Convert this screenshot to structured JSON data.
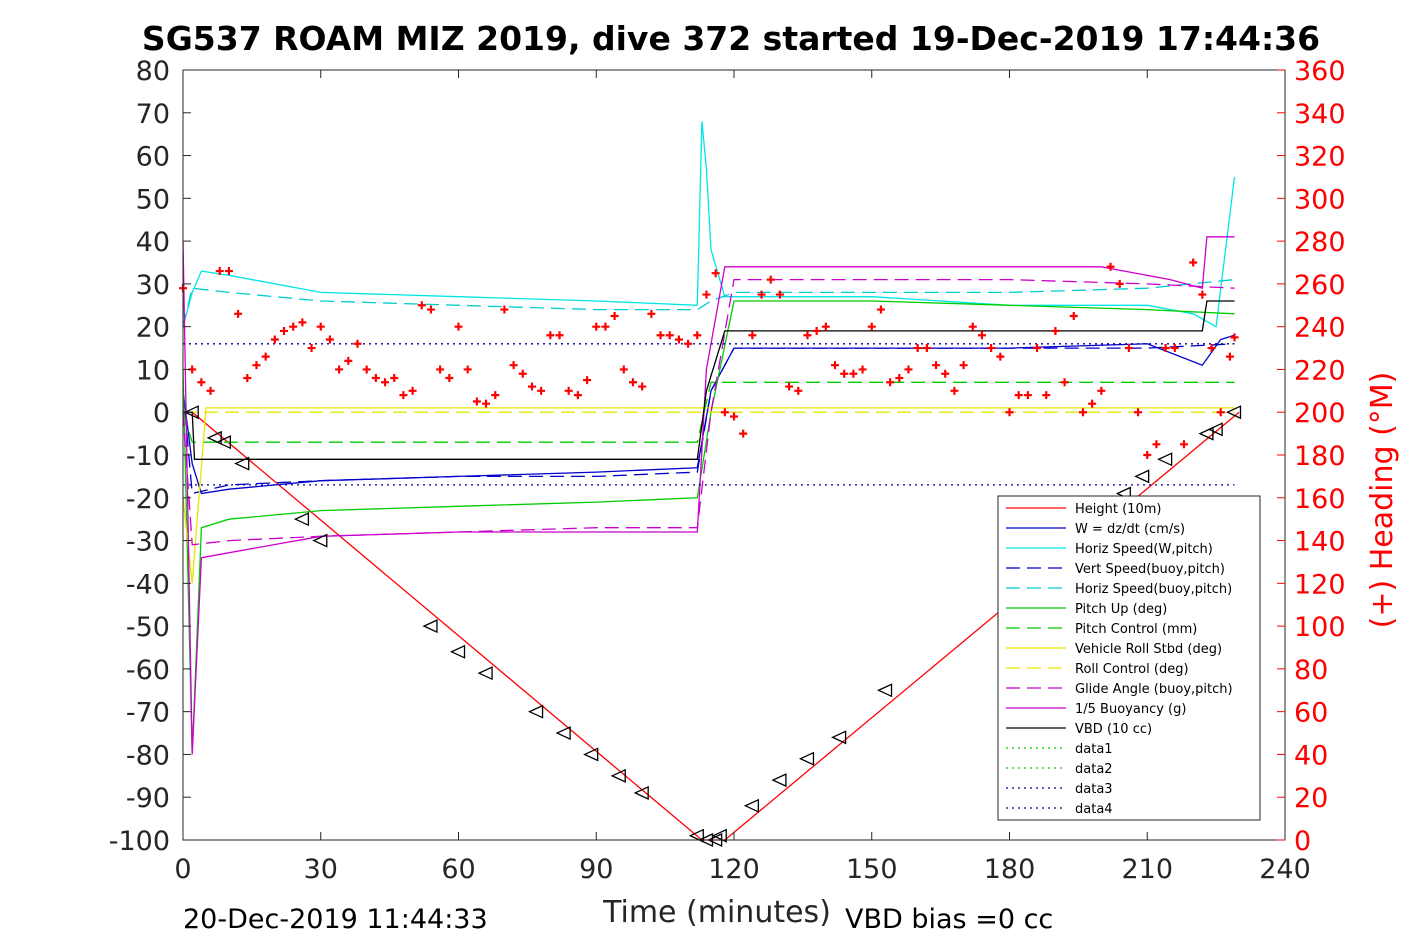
{
  "chart_data": {
    "type": "line",
    "title": "SG537 ROAM MIZ 2019, dive 372 started 19-Dec-2019 17:44:36",
    "xlabel": "Time (minutes)",
    "ylabel_right": "(+) Heading (°M)",
    "footer_left": "20-Dec-2019 11:44:33",
    "footer_right": "VBD bias =0 cc",
    "xlim": [
      0,
      240
    ],
    "ylim": [
      -100,
      80
    ],
    "ylim_right": [
      0,
      360
    ],
    "x_ticks": [
      "0",
      "30",
      "60",
      "90",
      "120",
      "150",
      "180",
      "210",
      "240"
    ],
    "y_ticks": [
      "80",
      "70",
      "60",
      "50",
      "40",
      "30",
      "20",
      "10",
      "0",
      "-10",
      "-20",
      "-30",
      "-40",
      "-50",
      "-60",
      "-70",
      "-80",
      "-90",
      "-100"
    ],
    "y_ticks_right": [
      "360",
      "340",
      "320",
      "300",
      "280",
      "260",
      "240",
      "220",
      "200",
      "180",
      "160",
      "140",
      "120",
      "100",
      "80",
      "60",
      "40",
      "20",
      "0"
    ],
    "grid": false,
    "legend_position": "bottom-right",
    "legend": [
      {
        "name": "Height (10m)",
        "color": "#ff0000",
        "dash": "solid"
      },
      {
        "name": "W = dz/dt (cm/s)",
        "color": "#0000cc",
        "dash": "solid"
      },
      {
        "name": "Horiz Speed(W,pitch)",
        "color": "#00e6e6",
        "dash": "solid"
      },
      {
        "name": "Vert Speed(buoy,pitch)",
        "color": "#0000cc",
        "dash": "dashed"
      },
      {
        "name": "Horiz Speed(buoy,pitch)",
        "color": "#00cccc",
        "dash": "dashed"
      },
      {
        "name": "Pitch Up (deg)",
        "color": "#00cc00",
        "dash": "solid"
      },
      {
        "name": "Pitch Control (mm)",
        "color": "#00cc00",
        "dash": "dashed"
      },
      {
        "name": "Vehicle Roll Stbd (deg)",
        "color": "#e6e600",
        "dash": "solid"
      },
      {
        "name": "Roll Control (deg)",
        "color": "#e6e600",
        "dash": "dashed"
      },
      {
        "name": "Glide Angle (buoy,pitch)",
        "color": "#cc00cc",
        "dash": "dashed"
      },
      {
        "name": "1/5 Buoyancy (g)",
        "color": "#cc00cc",
        "dash": "solid"
      },
      {
        "name": "VBD (10 cc)",
        "color": "#000000",
        "dash": "solid"
      },
      {
        "name": "data1",
        "color": "#00cc00",
        "dash": "dotted"
      },
      {
        "name": "data2",
        "color": "#00cc00",
        "dash": "dotted"
      },
      {
        "name": "data3",
        "color": "#000099",
        "dash": "dotted"
      },
      {
        "name": "data4",
        "color": "#000099",
        "dash": "dotted"
      }
    ],
    "series": [
      {
        "name": "Height (10m)",
        "color": "#ff0000",
        "dash": "solid",
        "x": [
          0,
          2,
          113,
          115,
          118,
          230
        ],
        "y": [
          0,
          0,
          -100,
          -100,
          -100,
          0
        ]
      },
      {
        "name": "W = dz/dt (cm/s)",
        "color": "#0000cc",
        "dash": "solid",
        "x": [
          0,
          2,
          4,
          10,
          30,
          60,
          90,
          112,
          115,
          120,
          150,
          180,
          210,
          222,
          226,
          229
        ],
        "y": [
          5,
          -12,
          -19,
          -18,
          -16,
          -15,
          -14,
          -13,
          5,
          15,
          15,
          15,
          16,
          11,
          17,
          18
        ]
      },
      {
        "name": "Horiz Speed(W,pitch)",
        "color": "#00e6e6",
        "dash": "solid",
        "x": [
          0,
          2,
          4,
          10,
          30,
          60,
          90,
          112,
          113,
          114,
          115,
          118,
          120,
          150,
          180,
          210,
          220,
          225,
          229
        ],
        "y": [
          20,
          28,
          33,
          32,
          28,
          27,
          26,
          25,
          68,
          57,
          38,
          27,
          27,
          27,
          25,
          25,
          23,
          20,
          55
        ]
      },
      {
        "name": "Vert Speed(buoy,pitch)",
        "color": "#0000cc",
        "dash": "dashed",
        "x": [
          0,
          2,
          10,
          30,
          60,
          90,
          112,
          115,
          120,
          150,
          180,
          210,
          229
        ],
        "y": [
          5,
          -19,
          -17,
          -16,
          -15,
          -15,
          -14,
          5,
          15,
          15,
          15,
          15,
          16
        ]
      },
      {
        "name": "Horiz Speed(buoy,pitch)",
        "color": "#00cccc",
        "dash": "dashed",
        "x": [
          0,
          2,
          10,
          30,
          60,
          90,
          112,
          115,
          120,
          150,
          180,
          210,
          229
        ],
        "y": [
          20,
          29,
          28,
          26,
          25,
          24,
          24,
          26,
          28,
          28,
          28,
          29,
          31
        ]
      },
      {
        "name": "Pitch Up (deg)",
        "color": "#00cc00",
        "dash": "solid",
        "x": [
          0,
          2,
          4,
          10,
          30,
          60,
          90,
          112,
          115,
          120,
          150,
          180,
          210,
          229
        ],
        "y": [
          10,
          -80,
          -27,
          -25,
          -23,
          -22,
          -21,
          -20,
          0,
          26,
          26,
          25,
          24,
          23
        ]
      },
      {
        "name": "Pitch Control (mm)",
        "color": "#00cc00",
        "dash": "dashed",
        "x": [
          0,
          2,
          112,
          115,
          229
        ],
        "y": [
          0,
          -7,
          -7,
          7,
          7
        ]
      },
      {
        "name": "Vehicle Roll Stbd (deg)",
        "color": "#e6e600",
        "dash": "solid",
        "x": [
          0,
          2,
          5,
          30,
          60,
          90,
          112,
          115,
          150,
          180,
          210,
          229
        ],
        "y": [
          -20,
          -40,
          1,
          1,
          1,
          1,
          1,
          1,
          1,
          1,
          1,
          1
        ]
      },
      {
        "name": "Roll Control (deg)",
        "color": "#e6e600",
        "dash": "dashed",
        "x": [
          0,
          229
        ],
        "y": [
          0,
          0
        ]
      },
      {
        "name": "Glide Angle (buoy,pitch)",
        "color": "#cc00cc",
        "dash": "dashed",
        "x": [
          0,
          2,
          10,
          30,
          60,
          90,
          112,
          115,
          120,
          150,
          180,
          210,
          229
        ],
        "y": [
          0,
          -31,
          -30,
          -29,
          -28,
          -27,
          -27,
          0,
          31,
          31,
          31,
          30,
          29
        ]
      },
      {
        "name": "1/5 Buoyancy (g)",
        "color": "#cc00cc",
        "dash": "solid",
        "x": [
          0,
          2,
          4,
          30,
          60,
          90,
          112,
          114,
          118,
          150,
          180,
          200,
          215,
          222,
          223,
          229
        ],
        "y": [
          40,
          -80,
          -34,
          -29,
          -28,
          -28,
          -28,
          10,
          34,
          34,
          34,
          34,
          31,
          29,
          41,
          41
        ]
      },
      {
        "name": "VBD (10 cc)",
        "color": "#000000",
        "dash": "solid",
        "x": [
          0,
          2,
          2.5,
          112,
          114,
          118,
          222,
          223,
          229
        ],
        "y": [
          0,
          0,
          -11,
          -11,
          5,
          19,
          19,
          26,
          26
        ]
      },
      {
        "name": "data3",
        "color": "#000099",
        "dash": "dotted",
        "x": [
          0,
          229
        ],
        "y": [
          16,
          16
        ]
      },
      {
        "name": "data4",
        "color": "#000099",
        "dash": "dotted",
        "x": [
          0,
          229
        ],
        "y": [
          -17,
          -17
        ]
      }
    ],
    "heading": {
      "name": "(+) Heading (°M)",
      "color": "#ff0000",
      "x": [
        0,
        2,
        4,
        6,
        8,
        10,
        12,
        14,
        16,
        18,
        20,
        22,
        24,
        26,
        28,
        30,
        32,
        34,
        36,
        38,
        40,
        42,
        44,
        46,
        48,
        50,
        52,
        54,
        56,
        58,
        60,
        62,
        64,
        66,
        68,
        70,
        72,
        74,
        76,
        78,
        80,
        82,
        84,
        86,
        88,
        90,
        92,
        94,
        96,
        98,
        100,
        102,
        104,
        106,
        108,
        110,
        112,
        114,
        116,
        118,
        120,
        122,
        124,
        126,
        128,
        130,
        132,
        134,
        136,
        138,
        140,
        142,
        144,
        146,
        148,
        150,
        152,
        154,
        156,
        158,
        160,
        162,
        164,
        166,
        168,
        170,
        172,
        174,
        176,
        178,
        180,
        182,
        184,
        186,
        188,
        190,
        192,
        194,
        196,
        198,
        200,
        202,
        204,
        206,
        208,
        210,
        212,
        214,
        216,
        218,
        220,
        222,
        224,
        226,
        228,
        229
      ],
      "y": [
        258,
        220,
        214,
        210,
        266,
        266,
        246,
        216,
        222,
        226,
        234,
        238,
        240,
        242,
        230,
        240,
        234,
        220,
        224,
        232,
        220,
        216,
        214,
        216,
        208,
        210,
        250,
        248,
        220,
        216,
        240,
        220,
        205,
        204,
        208,
        248,
        222,
        218,
        212,
        210,
        236,
        236,
        210,
        208,
        215,
        240,
        240,
        245,
        220,
        214,
        212,
        246,
        236,
        236,
        234,
        232,
        236,
        255,
        265,
        200,
        198,
        190,
        236,
        255,
        262,
        255,
        212,
        210,
        236,
        238,
        240,
        222,
        218,
        218,
        220,
        240,
        248,
        214,
        216,
        220,
        230,
        230,
        222,
        218,
        210,
        222,
        240,
        236,
        230,
        226,
        200,
        208,
        208,
        230,
        208,
        238,
        214,
        245,
        200,
        204,
        210,
        268,
        260,
        230,
        200,
        180,
        185,
        230,
        230,
        185,
        270,
        255,
        230,
        200,
        226,
        235
      ]
    },
    "glider_markers": {
      "x": [
        2,
        7,
        9,
        13,
        26,
        30,
        54,
        60,
        66,
        77,
        83,
        89,
        95,
        100,
        112,
        114,
        116,
        117,
        124,
        130,
        136,
        143,
        153,
        205,
        209,
        214,
        223,
        225,
        229
      ],
      "y": [
        0,
        -6,
        -7,
        -12,
        -25,
        -30,
        -50,
        -56,
        -61,
        -70,
        -75,
        -80,
        -85,
        -89,
        -99,
        -100,
        -100,
        -99,
        -92,
        -86,
        -81,
        -76,
        -65,
        -19,
        -15,
        -11,
        -5,
        -4,
        0
      ]
    }
  }
}
